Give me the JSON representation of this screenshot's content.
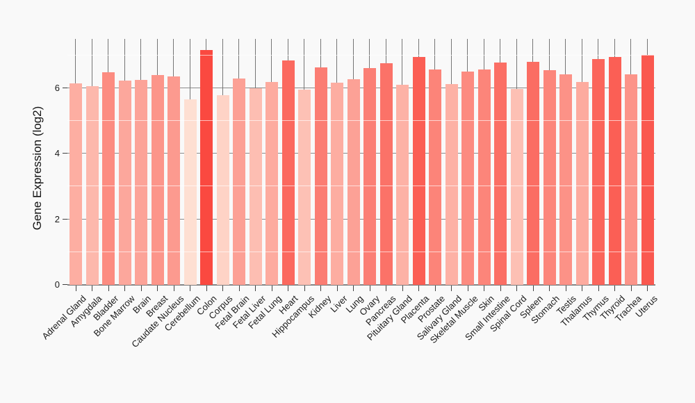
{
  "page": {
    "background": "#f9f9f9"
  },
  "chart_data": {
    "type": "bar",
    "title": "",
    "xlabel": "",
    "ylabel": "Gene Expression (log2)",
    "ylim": [
      0,
      7.5
    ],
    "yticks": [
      0,
      2,
      4,
      6
    ],
    "minor_gridlines": [
      1,
      3,
      5,
      7
    ],
    "whisker_top": 7.5,
    "legend": "none",
    "grid": "on",
    "categories": [
      "Adrenal Gland",
      "Amygdala",
      "Bladder",
      "Bone Marrow",
      "Brain",
      "Breast",
      "Caudate Nucleus",
      "Cerebellum",
      "Colon",
      "Corpus",
      "Fetal Brain",
      "Fetal Liver",
      "Fetal Lung",
      "Heart",
      "Hippocampus",
      "Kidney",
      "Liver",
      "Lung",
      "Ovary",
      "Pancreas",
      "Pituitary Gland",
      "Placenta",
      "Prostate",
      "Salivary Gland",
      "Skeletal Muscle",
      "Skin",
      "Small Intestine",
      "Spinal Cord",
      "Spleen",
      "Stomach",
      "Testis",
      "Thalamus",
      "Thymus",
      "Thyroid",
      "Trachea",
      "Uterus"
    ],
    "values": [
      6.15,
      6.05,
      6.49,
      6.22,
      6.26,
      6.4,
      6.35,
      5.66,
      7.16,
      5.78,
      6.29,
      5.99,
      6.18,
      6.84,
      5.96,
      6.64,
      6.16,
      6.28,
      6.62,
      6.75,
      6.11,
      6.95,
      6.57,
      6.12,
      6.5,
      6.56,
      6.78,
      5.97,
      6.8,
      6.55,
      6.43,
      6.18,
      6.88,
      6.94,
      6.41,
      7.01
    ],
    "color_scale": {
      "domain": [
        5.6,
        7.2
      ],
      "low": "#FEE5D8",
      "high": "#FA453C"
    },
    "colors": {
      "major_grid": "#8a8a8a",
      "minor_grid": "#ffffff",
      "baseline": "#7d7d7d",
      "whisker": "#757575",
      "tick": "#404040",
      "text": "#1a1a1a"
    }
  }
}
